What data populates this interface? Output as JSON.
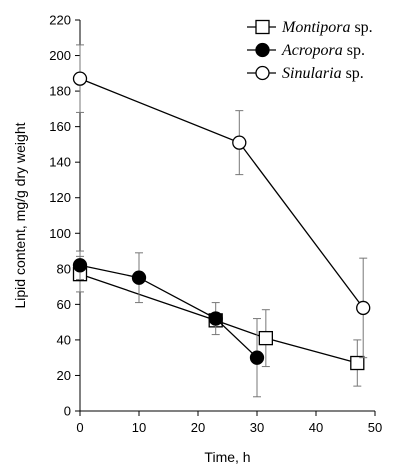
{
  "chart_data": {
    "type": "scatter",
    "title": "",
    "xlabel": "Time, h",
    "ylabel": "Lipid content, mg/g dry weight",
    "xlim": [
      0,
      50
    ],
    "ylim": [
      0,
      220
    ],
    "xticks": [
      0,
      10,
      20,
      30,
      40,
      50
    ],
    "yticks": [
      0,
      20,
      40,
      60,
      80,
      100,
      120,
      140,
      160,
      180,
      200,
      220
    ],
    "grid": false,
    "legend_position": "top-right",
    "series": [
      {
        "name_italic": "Montipora",
        "name_suffix": " sp.",
        "marker": "square-open",
        "x": [
          0,
          23,
          31.5,
          47
        ],
        "y": [
          77,
          51,
          41,
          27
        ],
        "err": [
          10,
          0,
          16,
          13
        ]
      },
      {
        "name_italic": "Acropora",
        "name_suffix": " sp.",
        "marker": "circle-filled",
        "x": [
          0,
          10,
          23,
          30
        ],
        "y": [
          82,
          75,
          52,
          30
        ],
        "err": [
          8,
          14,
          9,
          22
        ]
      },
      {
        "name_italic": "Sinularia",
        "name_suffix": " sp.",
        "marker": "circle-open",
        "x": [
          0,
          27,
          48
        ],
        "y": [
          187,
          151,
          58
        ],
        "err": [
          19,
          18,
          28
        ]
      }
    ]
  }
}
